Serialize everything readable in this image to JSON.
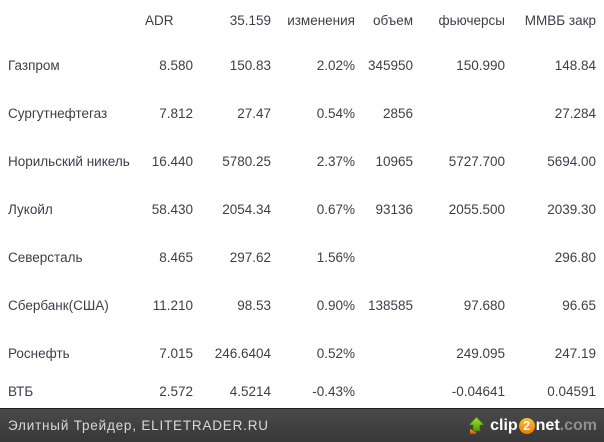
{
  "table": {
    "headers": [
      "",
      "ADR",
      "35.159",
      "изменения",
      "объем",
      "фьючерсы",
      "ММВБ закр"
    ],
    "rows": [
      {
        "name": "Газпром",
        "adr": "8.580",
        "price": "150.83",
        "change": "2.02%",
        "volume": "345950",
        "futures": "150.990",
        "micex": "148.84"
      },
      {
        "name": "Сургутнефтегаз",
        "adr": "7.812",
        "price": "27.47",
        "change": "0.54%",
        "volume": "2856",
        "futures": "",
        "micex": "27.284"
      },
      {
        "name": "Норильский никель",
        "adr": "16.440",
        "price": "5780.25",
        "change": "2.37%",
        "volume": "10965",
        "futures": "5727.700",
        "micex": "5694.00"
      },
      {
        "name": "Лукойл",
        "adr": "58.430",
        "price": "2054.34",
        "change": "0.67%",
        "volume": "93136",
        "futures": "2055.500",
        "micex": "2039.30"
      },
      {
        "name": "Северсталь",
        "adr": "8.465",
        "price": "297.62",
        "change": "1.56%",
        "volume": "",
        "futures": "",
        "micex": "296.80"
      },
      {
        "name": "Сбербанк(США)",
        "adr": "11.210",
        "price": "98.53",
        "change": "0.90%",
        "volume": "138585",
        "futures": "97.680",
        "micex": "96.65"
      },
      {
        "name": "Роснефть",
        "adr": "7.015",
        "price": "246.6404",
        "change": "0.52%",
        "volume": "",
        "futures": "249.095",
        "micex": "247.19"
      },
      {
        "name": "ВТБ",
        "adr": "2.572",
        "price": "4.5214",
        "change": "-0.43%",
        "volume": "",
        "futures": "-0.04641",
        "micex": "0.04591"
      }
    ]
  },
  "footer": {
    "credit": "Элитный Трейдер, ELITETRADER.RU",
    "logo": {
      "clip": "clip",
      "two": "2",
      "net": "net",
      "com": ".com"
    }
  },
  "colors": {
    "table_text": "#3e3e4a",
    "footer_bg": "#3f3f3f",
    "footer_text": "#d9d9d9",
    "logo_orange": "#f07800",
    "logo_green": "#6cc215",
    "logo_gray": "#8f8f8f"
  }
}
